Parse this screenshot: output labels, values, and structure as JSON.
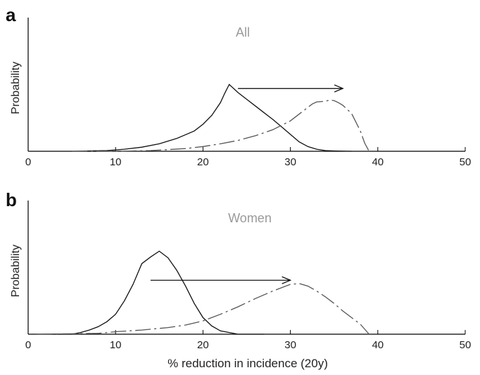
{
  "xlabel": "% reduction in incidence (20y)",
  "chart_data": [
    {
      "type": "line",
      "panel_label": "a",
      "title": "All",
      "ylabel": "Probability",
      "xlim": [
        0,
        50
      ],
      "ylim": [
        0,
        1
      ],
      "xticks": [
        0,
        10,
        20,
        30,
        40,
        50
      ],
      "tick_labels": [
        "0",
        "10",
        "20",
        "30",
        "40",
        "50"
      ],
      "arrow": {
        "from": 24,
        "to": 36,
        "y": 0.93
      },
      "series": [
        {
          "style": "solid",
          "color": "#111111",
          "x": [
            5,
            9,
            11,
            13,
            15,
            17,
            19,
            20,
            21,
            22,
            22.5,
            23,
            24,
            25,
            26,
            27,
            28,
            29,
            30,
            31,
            32,
            33,
            34,
            35,
            37
          ],
          "y": [
            0.0,
            0.01,
            0.03,
            0.06,
            0.11,
            0.19,
            0.3,
            0.4,
            0.53,
            0.72,
            0.86,
            0.99,
            0.87,
            0.77,
            0.67,
            0.57,
            0.47,
            0.36,
            0.25,
            0.14,
            0.07,
            0.03,
            0.01,
            0.005,
            0.0
          ]
        },
        {
          "style": "dashed",
          "color": "#555555",
          "x": [
            5,
            10,
            14,
            18,
            20,
            22,
            24,
            26,
            28,
            30,
            31,
            32,
            32.5,
            33,
            34,
            34.5,
            35,
            35.5,
            36,
            37,
            38,
            38.5,
            39
          ],
          "y": [
            0.0,
            0.0,
            0.01,
            0.04,
            0.07,
            0.11,
            0.16,
            0.23,
            0.32,
            0.45,
            0.55,
            0.65,
            0.7,
            0.73,
            0.74,
            0.76,
            0.75,
            0.72,
            0.68,
            0.56,
            0.3,
            0.12,
            0.0
          ]
        }
      ]
    },
    {
      "type": "line",
      "panel_label": "b",
      "title": "Women",
      "ylabel": "Probability",
      "xlim": [
        0,
        50
      ],
      "ylim": [
        0,
        1
      ],
      "xticks": [
        0,
        10,
        20,
        30,
        40,
        50
      ],
      "tick_labels": [
        "0",
        "10",
        "20",
        "30",
        "40",
        "50"
      ],
      "arrow": {
        "from": 14,
        "to": 30,
        "y": 0.65
      },
      "series": [
        {
          "style": "solid",
          "color": "#111111",
          "x": [
            1,
            5,
            6,
            7,
            8,
            9,
            10,
            11,
            12,
            13,
            14,
            15,
            16,
            17,
            18,
            19,
            20,
            21,
            22,
            24,
            27
          ],
          "y": [
            0.0,
            0.0,
            0.02,
            0.05,
            0.09,
            0.15,
            0.24,
            0.4,
            0.6,
            0.85,
            0.93,
            1.0,
            0.92,
            0.77,
            0.58,
            0.37,
            0.2,
            0.1,
            0.04,
            0.0,
            0.0
          ]
        },
        {
          "style": "dashed",
          "color": "#555555",
          "x": [
            1,
            8,
            10,
            13,
            16,
            18,
            20,
            22,
            24,
            26,
            28,
            29,
            30,
            31,
            32,
            33,
            34,
            35,
            36,
            37,
            38,
            39
          ],
          "y": [
            0.0,
            0.01,
            0.03,
            0.05,
            0.08,
            0.11,
            0.16,
            0.24,
            0.33,
            0.43,
            0.52,
            0.56,
            0.6,
            0.61,
            0.58,
            0.52,
            0.45,
            0.37,
            0.28,
            0.2,
            0.12,
            0.0
          ]
        }
      ]
    }
  ]
}
